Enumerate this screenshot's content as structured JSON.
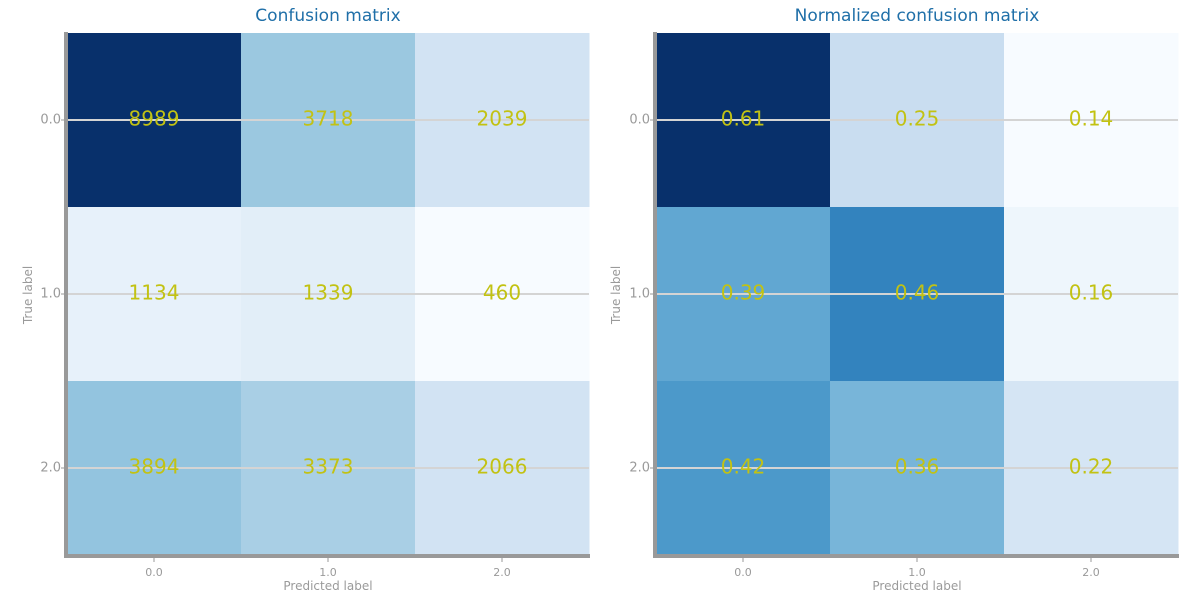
{
  "chart_data": [
    {
      "type": "heatmap",
      "title": "Confusion matrix",
      "xlabel": "Predicted label",
      "ylabel": "True label",
      "x_ticks": [
        "0.0",
        "1.0",
        "2.0"
      ],
      "y_ticks": [
        "0.0",
        "1.0",
        "2.0"
      ],
      "values": [
        [
          8989,
          3718,
          2039
        ],
        [
          1134,
          1339,
          460
        ],
        [
          3894,
          3373,
          2066
        ]
      ],
      "value_labels": [
        [
          "8989",
          "3718",
          "2039"
        ],
        [
          "1134",
          "1339",
          "460"
        ],
        [
          "3894",
          "3373",
          "2066"
        ]
      ],
      "colormap": "Blues",
      "annotation_color": "#c2c213",
      "grid": true
    },
    {
      "type": "heatmap",
      "title": "Normalized confusion matrix",
      "xlabel": "Predicted label",
      "ylabel": "True label",
      "x_ticks": [
        "0.0",
        "1.0",
        "2.0"
      ],
      "y_ticks": [
        "0.0",
        "1.0",
        "2.0"
      ],
      "values": [
        [
          0.61,
          0.25,
          0.14
        ],
        [
          0.39,
          0.46,
          0.16
        ],
        [
          0.42,
          0.36,
          0.22
        ]
      ],
      "value_labels": [
        [
          "0.61",
          "0.25",
          "0.14"
        ],
        [
          "0.39",
          "0.46",
          "0.16"
        ],
        [
          "0.42",
          "0.36",
          "0.22"
        ]
      ],
      "colormap": "Blues",
      "annotation_color": "#c2c213",
      "grid": true
    }
  ]
}
